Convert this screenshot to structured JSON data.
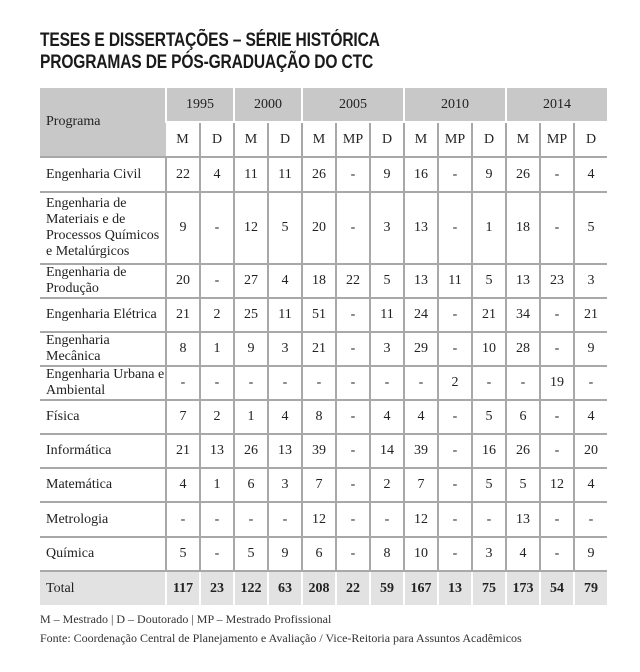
{
  "title": {
    "line1": "TESES E DISSERTAÇÕES – SÉRIE HISTÓRICA",
    "line2": "PROGRAMAS DE PÓS-GRADUAÇÃO DO CTC"
  },
  "table": {
    "program_header": "Programa",
    "years": [
      {
        "label": "1995",
        "cols": [
          "M",
          "D"
        ]
      },
      {
        "label": "2000",
        "cols": [
          "M",
          "D"
        ]
      },
      {
        "label": "2005",
        "cols": [
          "M",
          "MP",
          "D"
        ]
      },
      {
        "label": "2010",
        "cols": [
          "M",
          "MP",
          "D"
        ]
      },
      {
        "label": "2014",
        "cols": [
          "M",
          "MP",
          "D"
        ]
      }
    ],
    "rows": [
      {
        "name": "Engenharia Civil",
        "values": [
          "22",
          "4",
          "11",
          "11",
          "26",
          "-",
          "9",
          "16",
          "-",
          "9",
          "26",
          "-",
          "4"
        ]
      },
      {
        "name": "Engenharia de Materiais e de Processos Químicos e Metalúrgicos",
        "values": [
          "9",
          "-",
          "12",
          "5",
          "20",
          "-",
          "3",
          "13",
          "-",
          "1",
          "18",
          "-",
          "5"
        ]
      },
      {
        "name": "Engenharia de Produção",
        "values": [
          "20",
          "-",
          "27",
          "4",
          "18",
          "22",
          "5",
          "13",
          "11",
          "5",
          "13",
          "23",
          "3"
        ]
      },
      {
        "name": "Engenharia Elétrica",
        "values": [
          "21",
          "2",
          "25",
          "11",
          "51",
          "-",
          "11",
          "24",
          "-",
          "21",
          "34",
          "-",
          "21"
        ]
      },
      {
        "name": "Engenharia Mecânica",
        "values": [
          "8",
          "1",
          "9",
          "3",
          "21",
          "-",
          "3",
          "29",
          "-",
          "10",
          "28",
          "-",
          "9"
        ]
      },
      {
        "name": "Engenharia Urbana e Ambiental",
        "values": [
          "-",
          "-",
          "-",
          "-",
          "-",
          "-",
          "-",
          "-",
          "2",
          "-",
          "-",
          "19",
          "-"
        ]
      },
      {
        "name": "Física",
        "values": [
          "7",
          "2",
          "1",
          "4",
          "8",
          "-",
          "4",
          "4",
          "-",
          "5",
          "6",
          "-",
          "4"
        ]
      },
      {
        "name": "Informática",
        "values": [
          "21",
          "13",
          "26",
          "13",
          "39",
          "-",
          "14",
          "39",
          "-",
          "16",
          "26",
          "-",
          "20"
        ]
      },
      {
        "name": "Matemática",
        "values": [
          "4",
          "1",
          "6",
          "3",
          "7",
          "-",
          "2",
          "7",
          "-",
          "5",
          "5",
          "12",
          "4"
        ]
      },
      {
        "name": "Metrologia",
        "values": [
          "-",
          "-",
          "-",
          "-",
          "12",
          "-",
          "-",
          "12",
          "-",
          "-",
          "13",
          "-",
          "-"
        ]
      },
      {
        "name": "Química",
        "values": [
          "5",
          "-",
          "5",
          "9",
          "6",
          "-",
          "8",
          "10",
          "-",
          "3",
          "4",
          "-",
          "9"
        ]
      }
    ],
    "total": {
      "name": "Total",
      "values": [
        "117",
        "23",
        "122",
        "63",
        "208",
        "22",
        "59",
        "167",
        "13",
        "75",
        "173",
        "54",
        "79"
      ]
    }
  },
  "footer": {
    "legend": "M – Mestrado | D – Doutorado | MP – Mestrado Profissional",
    "source": "Fonte: Coordenação Central de Planejamento e Avaliação / Vice-Reitoria para Assuntos Acadêmicos"
  }
}
